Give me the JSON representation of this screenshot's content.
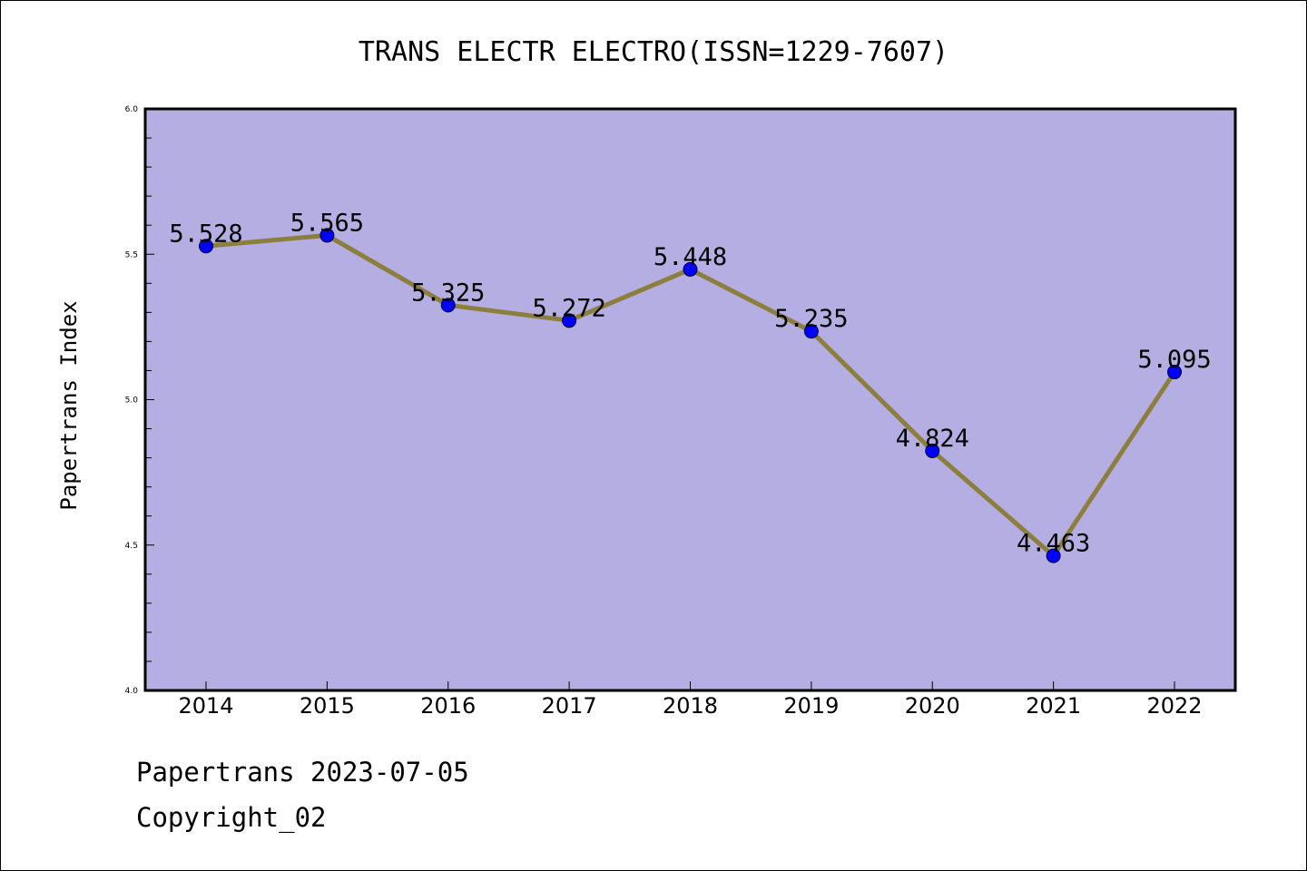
{
  "chart_data": {
    "type": "line",
    "title": "TRANS ELECTR ELECTRO(ISSN=1229-7607)",
    "xlabel": "",
    "ylabel": "Papertrans Index",
    "categories": [
      "2014",
      "2015",
      "2016",
      "2017",
      "2018",
      "2019",
      "2020",
      "2021",
      "2022"
    ],
    "series": [
      {
        "values": [
          5.528,
          5.565,
          5.325,
          5.272,
          5.448,
          5.235,
          4.824,
          4.463,
          5.095
        ],
        "labels": [
          "5.528",
          "5.565",
          "5.325",
          "5.272",
          "5.448",
          "5.235",
          "4.824",
          "4.463",
          "5.095"
        ]
      }
    ],
    "ylim": [
      4.0,
      6.0
    ],
    "yticks": [
      "4.0",
      "4.5",
      "5.0",
      "5.5",
      "6.0"
    ],
    "grid": false,
    "colors": {
      "plot_background": "#b5aee2",
      "line": "#8c7e3c",
      "marker": "#0000ff"
    }
  },
  "footer": {
    "date_line": "Papertrans 2023-07-05",
    "copyright": "Copyright_02"
  }
}
